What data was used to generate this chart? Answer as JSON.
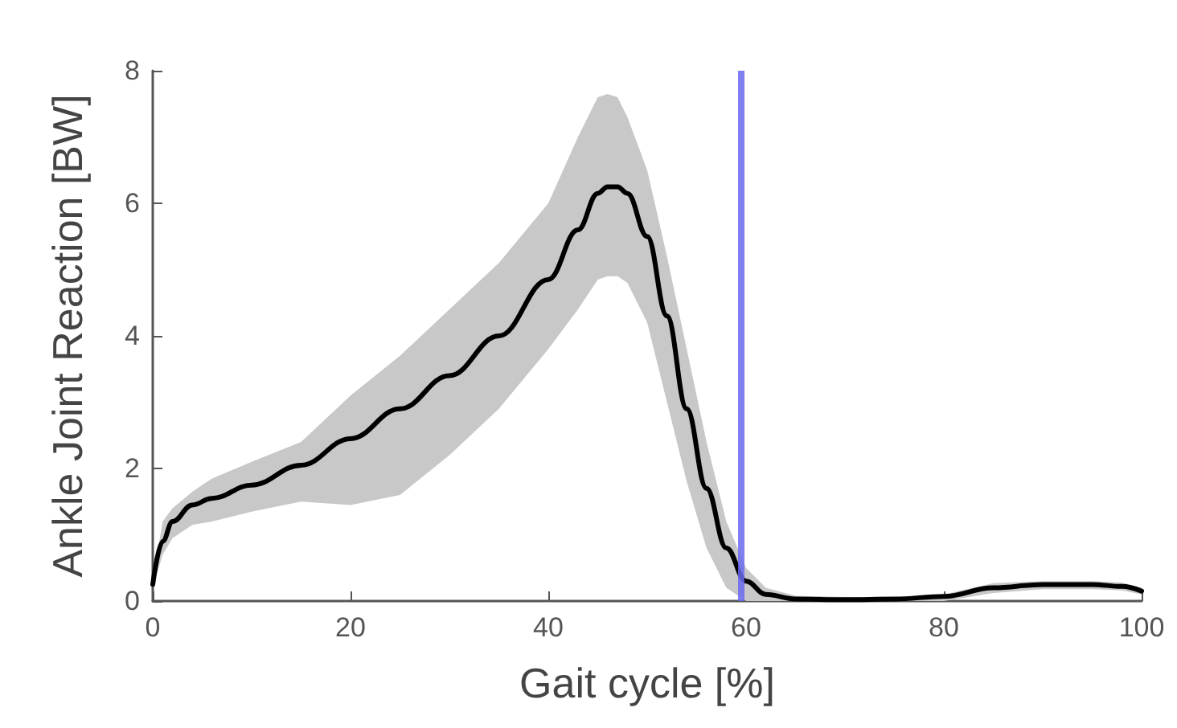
{
  "chart_data": {
    "type": "line",
    "xlabel": "Gait cycle [%]",
    "ylabel": "Ankle Joint Reaction [BW]",
    "x": [
      0,
      1,
      2,
      4,
      6,
      10,
      15,
      20,
      25,
      30,
      35,
      40,
      43,
      45,
      46,
      47,
      48,
      50,
      52,
      54,
      56,
      58,
      60,
      62,
      65,
      70,
      75,
      80,
      85,
      90,
      95,
      98,
      100
    ],
    "series": [
      {
        "color": "#000000",
        "values": [
          0.25,
          0.9,
          1.2,
          1.45,
          1.55,
          1.75,
          2.05,
          2.45,
          2.9,
          3.4,
          4.0,
          4.85,
          5.6,
          6.15,
          6.25,
          6.25,
          6.15,
          5.5,
          4.3,
          2.9,
          1.7,
          0.8,
          0.3,
          0.1,
          0.03,
          0.02,
          0.03,
          0.07,
          0.2,
          0.25,
          0.25,
          0.22,
          0.15
        ],
        "upper": [
          0.3,
          1.2,
          1.4,
          1.65,
          1.85,
          2.1,
          2.4,
          3.1,
          3.7,
          4.4,
          5.1,
          6.0,
          7.0,
          7.6,
          7.65,
          7.6,
          7.3,
          6.5,
          5.2,
          3.8,
          2.4,
          1.2,
          0.5,
          0.2,
          0.08,
          0.06,
          0.06,
          0.1,
          0.27,
          0.3,
          0.3,
          0.28,
          0.2
        ],
        "lower": [
          0.2,
          0.7,
          0.95,
          1.15,
          1.2,
          1.35,
          1.5,
          1.45,
          1.6,
          2.2,
          2.9,
          3.8,
          4.4,
          4.85,
          4.9,
          4.9,
          4.8,
          4.2,
          3.0,
          1.8,
          0.8,
          0.2,
          0,
          0,
          0,
          0,
          0,
          0,
          0.12,
          0.18,
          0.18,
          0.16,
          0.1
        ]
      }
    ],
    "xlim": [
      0,
      100
    ],
    "xticks": [
      0,
      20,
      40,
      60,
      80,
      100
    ],
    "ylim": [
      0,
      8
    ],
    "yticks": [
      0,
      2,
      4,
      6,
      8
    ],
    "ref_lines": [
      {
        "axis": "x",
        "value": 59.5,
        "color": "#6a6af0"
      }
    ],
    "grid": false,
    "marker": "none",
    "line_style": "solid"
  }
}
